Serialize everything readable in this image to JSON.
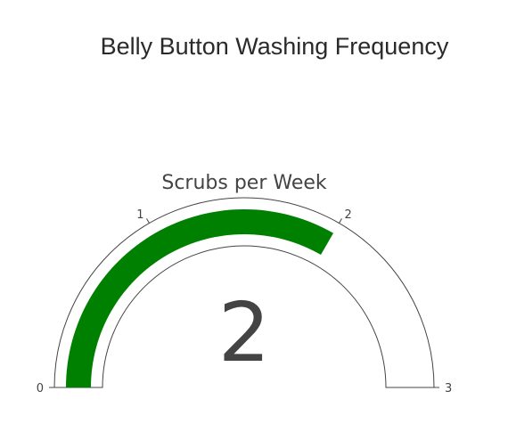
{
  "chart_data": {
    "type": "gauge",
    "title": "Belly Button Washing Frequency",
    "subtitle": "Scrubs per Week",
    "value": 2,
    "value_label": "2",
    "range": [
      0,
      3
    ],
    "ticks": [
      {
        "value": 0,
        "label": "0"
      },
      {
        "value": 1,
        "label": "1"
      },
      {
        "value": 2,
        "label": "2"
      },
      {
        "value": 3,
        "label": "3"
      }
    ],
    "bar_color": "#008000",
    "track_color": "#ffffff",
    "outline_color": "#444444"
  }
}
